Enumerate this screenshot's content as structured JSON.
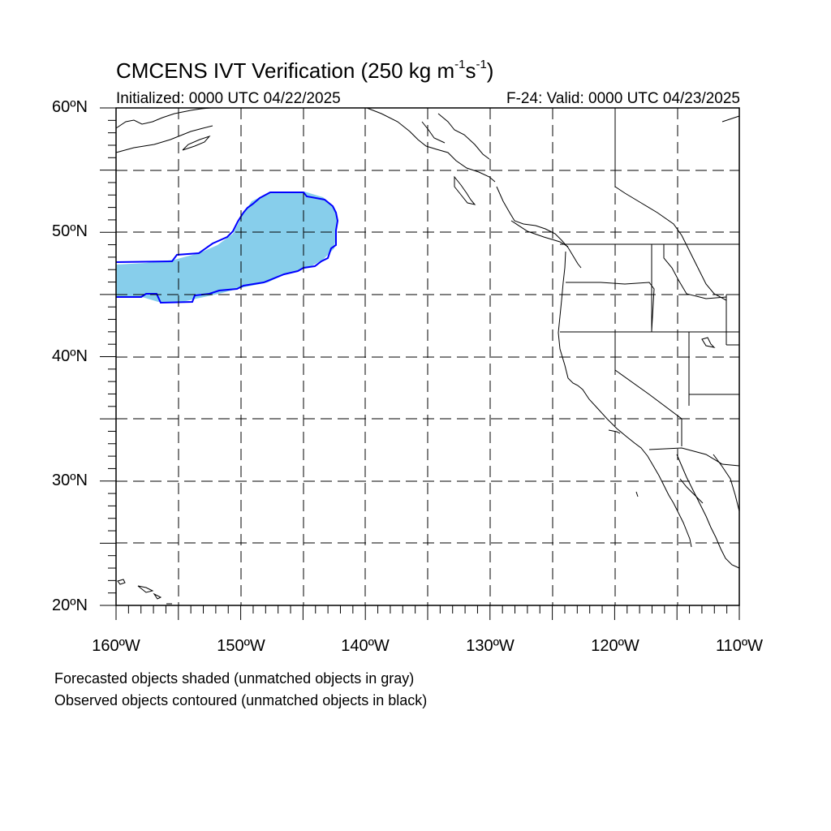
{
  "title": {
    "main": "CMCENS IVT Verification (250 kg m",
    "exp1": "-1",
    "mid": "s",
    "exp2": "-1",
    "close": ")"
  },
  "subtitle": {
    "left": "Initialized: 0000 UTC 04/22/2025",
    "right": "F-24: Valid: 0000 UTC 04/23/2025"
  },
  "map": {
    "lat_range": [
      20,
      60
    ],
    "lon_range": [
      -160,
      -110
    ],
    "grid": true,
    "grid_style": "dashed",
    "forecast_fill_color": "#87ceeb",
    "observed_contour_color": "#0000ff",
    "coastline_color": "#000000"
  },
  "lat_labels": [
    "60ºN",
    "50ºN",
    "40ºN",
    "30ºN",
    "20ºN"
  ],
  "lon_labels": [
    "160ºW",
    "150ºW",
    "140ºW",
    "130ºW",
    "120ºW",
    "110ºW"
  ],
  "legend": {
    "line1": "Forecasted objects shaded (unmatched objects in gray)",
    "line2": "Observed objects contoured (unmatched objects in black)"
  }
}
